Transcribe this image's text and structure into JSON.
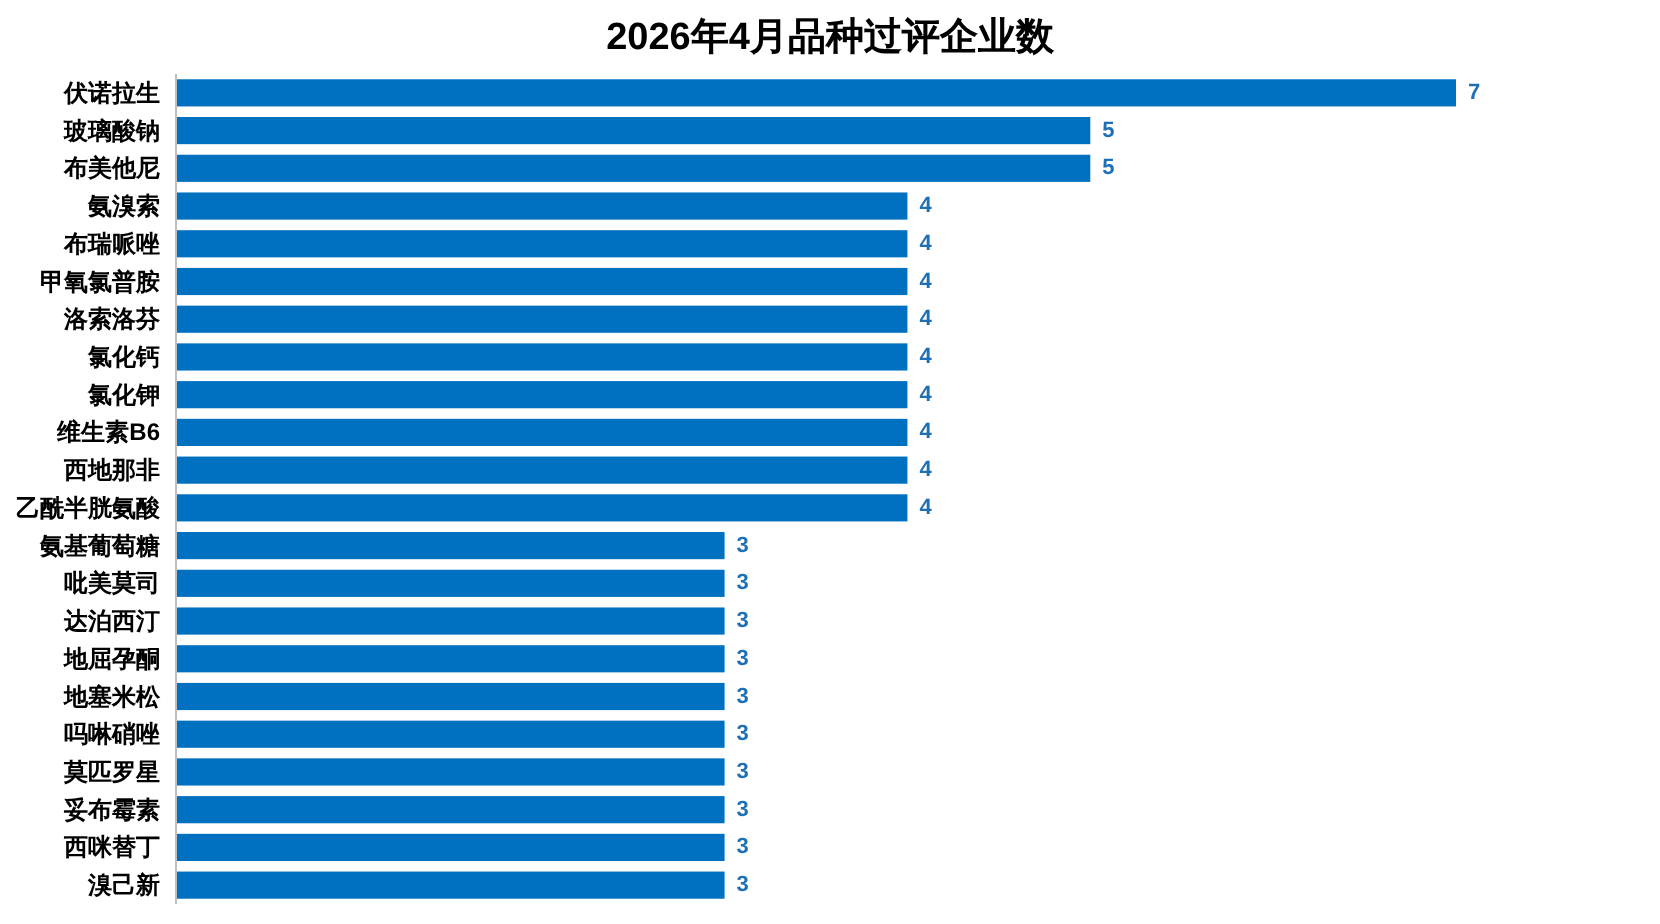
{
  "chart_data": {
    "type": "bar",
    "orientation": "horizontal",
    "title": "2026年4月品种过评企业数",
    "categories": [
      "伏诺拉生",
      "玻璃酸钠",
      "布美他尼",
      "氨溴索",
      "布瑞哌唑",
      "甲氧氯普胺",
      "洛索洛芬",
      "氯化钙",
      "氯化钾",
      "维生素B6",
      "西地那非",
      "乙酰半胱氨酸",
      "氨基葡萄糖",
      "吡美莫司",
      "达泊西汀",
      "地屈孕酮",
      "地塞米松",
      "吗啉硝唑",
      "莫匹罗星",
      "妥布霉素",
      "西咪替丁",
      "溴己新"
    ],
    "values": [
      7,
      5,
      5,
      4,
      4,
      4,
      4,
      4,
      4,
      4,
      4,
      4,
      3,
      3,
      3,
      3,
      3,
      3,
      3,
      3,
      3,
      3
    ],
    "color": "#0070c0",
    "data_labels": true
  }
}
